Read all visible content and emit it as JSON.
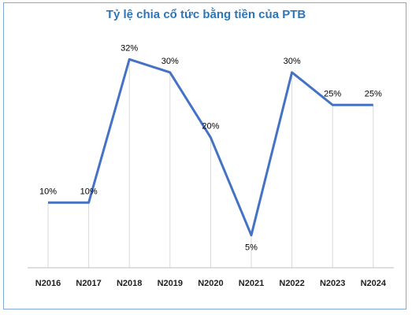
{
  "chart_data": {
    "type": "line",
    "title": "Tỷ lệ chia cổ tức bằng tiền của PTB",
    "xlabel": "",
    "ylabel": "",
    "categories": [
      "N2016",
      "N2017",
      "N2018",
      "N2019",
      "N2020",
      "N2021",
      "N2022",
      "N2023",
      "N2024"
    ],
    "series": [
      {
        "values": [
          10,
          10,
          32,
          30,
          20,
          5,
          30,
          25,
          25
        ],
        "labels": [
          "10%",
          "10%",
          "32%",
          "30%",
          "20%",
          "5%",
          "30%",
          "25%",
          "25%"
        ],
        "color": "#4472c4"
      }
    ],
    "ylim": [
      0,
      35
    ],
    "grid": false,
    "drop_lines": true,
    "legend": "none",
    "colors": {
      "title": "#2e75b6",
      "line": "#4472c4",
      "frame": "#7fa9d6",
      "drop_line": "#d9d9d9",
      "axis": "#bfbfbf"
    }
  }
}
